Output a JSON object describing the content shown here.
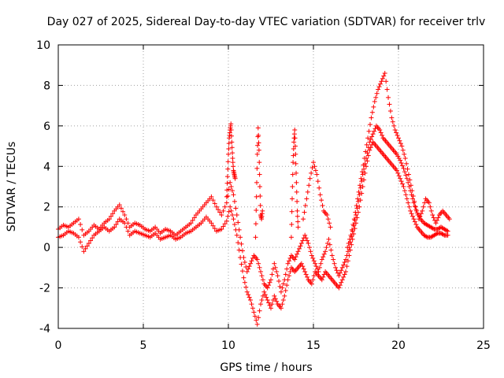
{
  "chart_data": {
    "type": "scatter",
    "title": "Day 027 of 2025, Sidereal Day-to-day VTEC variation (SDTVAR) for receiver trlv",
    "xlabel": "GPS time / hours",
    "ylabel": "SDTVAR / TECUs",
    "xlim": [
      0,
      25
    ],
    "ylim": [
      -4,
      10
    ],
    "xticks": [
      0,
      5,
      10,
      15,
      20,
      25
    ],
    "yticks": [
      -4,
      -2,
      0,
      2,
      4,
      6,
      8,
      10
    ],
    "xtick_labels": [
      "0",
      "5",
      "10",
      "15",
      "20",
      "25"
    ],
    "ytick_labels": [
      "-4",
      "-2",
      "0",
      "2",
      "4",
      "6",
      "8",
      "10"
    ],
    "grid": true,
    "marker": "plus",
    "color": "#ff0000",
    "series": [
      {
        "name": "track-1",
        "x": [
          0.0,
          0.3,
          0.6,
          0.9,
          1.2,
          1.5,
          1.8,
          2.1,
          2.4,
          2.7,
          3.0,
          3.3,
          3.6,
          3.9,
          4.2,
          4.5,
          4.8,
          5.1,
          5.4,
          5.7,
          6.0,
          6.3,
          6.6,
          6.9,
          7.2,
          7.5,
          7.8,
          8.1,
          8.4,
          8.7,
          9.0,
          9.3,
          9.6,
          9.9,
          10.1,
          10.3,
          10.5,
          10.7,
          10.9,
          11.1,
          11.3,
          11.5,
          11.7,
          11.9,
          12.1,
          12.3,
          12.5,
          12.7,
          12.9,
          13.1,
          13.3,
          13.5,
          13.7,
          13.9,
          14.1,
          14.3,
          14.5,
          14.7,
          14.9,
          15.1,
          15.3,
          15.5,
          15.7,
          15.9,
          16.1,
          16.3,
          16.5,
          16.7,
          16.9,
          17.1,
          17.3,
          17.5,
          17.7,
          17.9,
          18.1,
          18.3,
          18.5,
          18.7,
          18.9,
          19.1,
          19.3,
          19.5,
          19.7,
          19.9,
          20.1,
          20.3,
          20.5,
          20.7,
          20.9,
          21.1,
          21.3,
          21.5,
          21.7,
          21.9,
          22.1,
          22.3,
          22.5,
          22.7,
          22.9
        ],
        "y": [
          0.9,
          1.1,
          1.0,
          1.2,
          1.4,
          0.6,
          0.8,
          1.1,
          0.9,
          1.2,
          1.4,
          1.8,
          2.1,
          1.6,
          1.0,
          1.2,
          1.1,
          0.9,
          0.8,
          1.0,
          0.7,
          0.9,
          0.8,
          0.6,
          0.8,
          1.0,
          1.2,
          1.6,
          1.9,
          2.2,
          2.5,
          2.0,
          1.6,
          2.2,
          3.2,
          2.6,
          1.6,
          0.5,
          -0.5,
          -1.2,
          -0.8,
          -0.4,
          -0.6,
          -1.2,
          -1.8,
          -2.0,
          -1.6,
          -0.8,
          -1.4,
          -2.2,
          -1.6,
          -0.8,
          -0.4,
          -0.6,
          -0.2,
          0.2,
          0.6,
          0.2,
          -0.4,
          -0.8,
          -1.2,
          -0.6,
          -0.2,
          0.4,
          -0.4,
          -1.0,
          -1.4,
          -1.0,
          -0.6,
          0.0,
          0.8,
          1.6,
          2.6,
          3.6,
          4.4,
          5.2,
          5.6,
          6.0,
          5.8,
          5.4,
          5.2,
          5.0,
          4.8,
          4.6,
          4.3,
          3.9,
          3.4,
          2.8,
          2.2,
          1.7,
          1.4,
          1.2,
          1.1,
          1.0,
          0.9,
          0.9,
          1.0,
          0.9,
          0.8
        ]
      },
      {
        "name": "track-2",
        "x": [
          0.0,
          0.3,
          0.6,
          0.9,
          1.2,
          1.5,
          1.8,
          2.1,
          2.4,
          2.7,
          3.0,
          3.3,
          3.6,
          3.9,
          4.2,
          4.5,
          4.8,
          5.1,
          5.4,
          5.7,
          6.0,
          6.3,
          6.6,
          6.9,
          7.2,
          7.5,
          7.8,
          8.1,
          8.4,
          8.7,
          9.0,
          9.3,
          9.6,
          9.9,
          10.1,
          10.3,
          10.5,
          10.7,
          10.9,
          11.1,
          11.3,
          11.5,
          11.7,
          11.9,
          12.1,
          12.3,
          12.5,
          12.7,
          12.9,
          13.1,
          13.3,
          13.5,
          13.7,
          13.9,
          14.1,
          14.3,
          14.5,
          14.7,
          14.9,
          15.1,
          15.3,
          15.5,
          15.7,
          15.9,
          16.1,
          16.3,
          16.5,
          16.7,
          16.9,
          17.1,
          17.3,
          17.5,
          17.7,
          17.9,
          18.1,
          18.3,
          18.5,
          18.7,
          18.9,
          19.1,
          19.3,
          19.5,
          19.7,
          19.9,
          20.1,
          20.3,
          20.5,
          20.7,
          20.9,
          21.1,
          21.3,
          21.5,
          21.7,
          21.9,
          22.1,
          22.3,
          22.5,
          22.7,
          22.9
        ],
        "y": [
          0.5,
          0.6,
          0.8,
          0.7,
          0.5,
          -0.2,
          0.2,
          0.6,
          0.8,
          1.0,
          0.8,
          1.0,
          1.4,
          1.2,
          0.6,
          0.8,
          0.7,
          0.6,
          0.5,
          0.7,
          0.4,
          0.5,
          0.6,
          0.4,
          0.5,
          0.7,
          0.8,
          1.0,
          1.2,
          1.5,
          1.2,
          0.8,
          0.9,
          1.3,
          2.0,
          1.4,
          0.6,
          -0.5,
          -1.5,
          -2.2,
          -2.6,
          -3.2,
          -3.8,
          -2.8,
          -2.2,
          -2.6,
          -3.0,
          -2.4,
          -2.8,
          -3.0,
          -2.4,
          -1.6,
          -1.0,
          -1.2,
          -1.0,
          -0.8,
          -1.2,
          -1.6,
          -1.8,
          -1.2,
          -1.4,
          -1.6,
          -1.2,
          -1.4,
          -1.6,
          -1.8,
          -2.0,
          -1.6,
          -1.2,
          -0.4,
          0.4,
          1.2,
          2.0,
          3.0,
          4.0,
          4.8,
          5.2,
          5.0,
          4.8,
          4.6,
          4.4,
          4.2,
          4.0,
          3.8,
          3.4,
          3.0,
          2.4,
          1.8,
          1.4,
          1.0,
          0.8,
          0.6,
          0.5,
          0.5,
          0.6,
          0.7,
          0.7,
          0.6,
          0.6
        ]
      },
      {
        "name": "track-3",
        "x": [
          17.0,
          17.2,
          17.4,
          17.6,
          17.8,
          18.0,
          18.2,
          18.4,
          18.6,
          18.8,
          19.0,
          19.2,
          19.4,
          19.6,
          19.8,
          20.0,
          20.2,
          20.4,
          20.6,
          20.8,
          21.0,
          21.2,
          21.4,
          21.6,
          21.8,
          22.0,
          22.2,
          22.4,
          22.6,
          22.8,
          23.0
        ],
        "y": [
          0.0,
          0.6,
          1.4,
          2.4,
          3.4,
          4.4,
          5.4,
          6.4,
          7.2,
          7.8,
          8.2,
          8.6,
          7.4,
          6.4,
          5.8,
          5.4,
          5.0,
          4.4,
          3.6,
          2.8,
          2.0,
          1.4,
          1.8,
          2.4,
          2.2,
          1.6,
          1.2,
          1.6,
          1.8,
          1.6,
          1.4
        ]
      },
      {
        "name": "spike-10",
        "x": [
          9.9,
          9.95,
          10.0,
          10.05,
          10.1,
          10.15,
          10.2,
          10.25,
          10.3,
          10.35,
          10.4
        ],
        "y": [
          2.5,
          3.5,
          4.6,
          5.4,
          5.8,
          6.1,
          5.2,
          4.4,
          3.8,
          3.6,
          3.4
        ]
      },
      {
        "name": "spike-12",
        "x": [
          11.6,
          11.65,
          11.7,
          11.75,
          11.8,
          11.85,
          11.9,
          11.95,
          12.0
        ],
        "y": [
          0.5,
          2.5,
          4.6,
          5.9,
          4.8,
          3.0,
          1.6,
          1.4,
          1.8
        ]
      },
      {
        "name": "spike-13.9",
        "x": [
          13.7,
          13.75,
          13.8,
          13.85,
          13.9,
          13.95,
          14.0,
          14.05,
          14.1
        ],
        "y": [
          0.5,
          2.4,
          4.2,
          5.2,
          5.8,
          4.6,
          3.2,
          1.8,
          1.0
        ]
      },
      {
        "name": "bump-15",
        "x": [
          14.4,
          14.6,
          14.8,
          15.0,
          15.2,
          15.4,
          15.6,
          15.8,
          16.0
        ],
        "y": [
          1.4,
          2.4,
          3.4,
          4.2,
          3.6,
          2.6,
          1.8,
          1.6,
          1.0
        ]
      }
    ]
  }
}
